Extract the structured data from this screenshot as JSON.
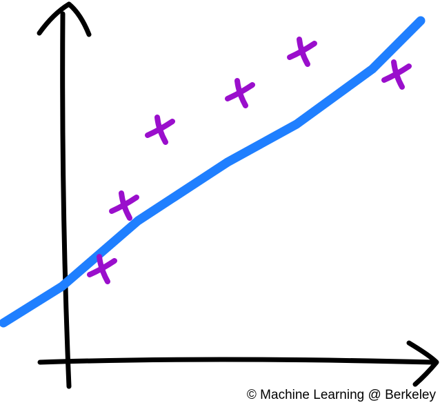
{
  "chart_data": {
    "type": "scatter",
    "annotation": "© Machine Learning @ Berkeley",
    "xlim": [
      -97,
      541
    ],
    "ylim": [
      -75,
      525
    ],
    "x": [
      51,
      83,
      135,
      251,
      341,
      478
    ],
    "values": [
      135,
      227,
      337,
      390,
      450,
      417
    ],
    "color": "#9a0fcc",
    "fit": {
      "x": [
        -92,
        -7,
        103,
        233,
        333,
        443,
        513
      ],
      "values": [
        57,
        110,
        205,
        290,
        345,
        425,
        495
      ],
      "color": "#1f7fff"
    }
  }
}
